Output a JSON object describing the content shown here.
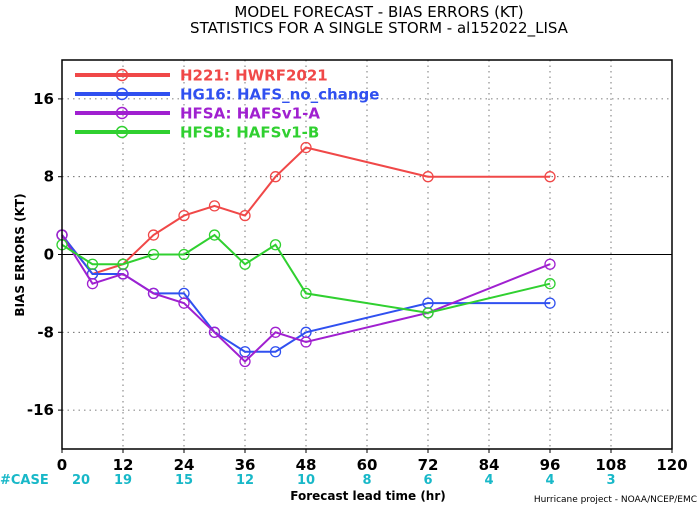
{
  "chart_data": {
    "type": "line",
    "title": "MODEL FORECAST - BIAS ERRORS (KT)",
    "subtitle": "STATISTICS FOR A SINGLE STORM - al152022_LISA",
    "xlabel": "Forecast lead time (hr)",
    "ylabel": "BIAS ERRORS (KT)",
    "xlim": [
      0,
      120
    ],
    "ylim": [
      -20,
      20
    ],
    "xticks": [
      0,
      12,
      24,
      36,
      48,
      60,
      72,
      84,
      96,
      108,
      120
    ],
    "yticks": [
      -16,
      -8,
      0,
      8,
      16
    ],
    "xtick_labels": [
      "0",
      "12",
      "24",
      "36",
      "48",
      "60",
      "72",
      "84",
      "96",
      "108",
      "120"
    ],
    "ytick_labels": [
      "-16",
      "-8",
      "0",
      "8",
      "16"
    ],
    "grid": true,
    "legend_position": "top-left",
    "case_label": "#CASE",
    "cases": [
      {
        "x": 0,
        "label": "20"
      },
      {
        "x": 12,
        "label": "19"
      },
      {
        "x": 24,
        "label": "15"
      },
      {
        "x": 36,
        "label": "12"
      },
      {
        "x": 48,
        "label": "10"
      },
      {
        "x": 60,
        "label": "8"
      },
      {
        "x": 72,
        "label": "6"
      },
      {
        "x": 84,
        "label": "4"
      },
      {
        "x": 96,
        "label": "4"
      },
      {
        "x": 108,
        "label": "3"
      }
    ],
    "series": [
      {
        "name": "H221: HWRF2021",
        "color": "#f04848",
        "x": [
          0,
          6,
          12,
          18,
          24,
          30,
          36,
          42,
          48,
          72,
          96
        ],
        "y": [
          2,
          -2,
          -1,
          2,
          4,
          5,
          4,
          8,
          11,
          8,
          8
        ]
      },
      {
        "name": "HG16: HAFS_no_change",
        "color": "#3050f0",
        "x": [
          0,
          6,
          12,
          18,
          24,
          30,
          36,
          42,
          48,
          72,
          96
        ],
        "y": [
          2,
          -2,
          -2,
          -4,
          -4,
          -8,
          -10,
          -10,
          -8,
          -5,
          -5
        ]
      },
      {
        "name": "HFSA: HAFSv1-A",
        "color": "#a020d0",
        "x": [
          0,
          6,
          12,
          18,
          24,
          30,
          36,
          42,
          48,
          72,
          96
        ],
        "y": [
          2,
          -3,
          -2,
          -4,
          -5,
          -8,
          -11,
          -8,
          -9,
          -6,
          -1
        ]
      },
      {
        "name": "HFSB: HAFSv1-B",
        "color": "#30d030",
        "x": [
          0,
          6,
          12,
          18,
          24,
          30,
          36,
          42,
          48,
          72,
          96
        ],
        "y": [
          1,
          -1,
          -1,
          0,
          0,
          2,
          -1,
          1,
          -4,
          -6,
          -3
        ]
      }
    ],
    "credit": "Hurricane project - NOAA/NCEP/EMC"
  }
}
